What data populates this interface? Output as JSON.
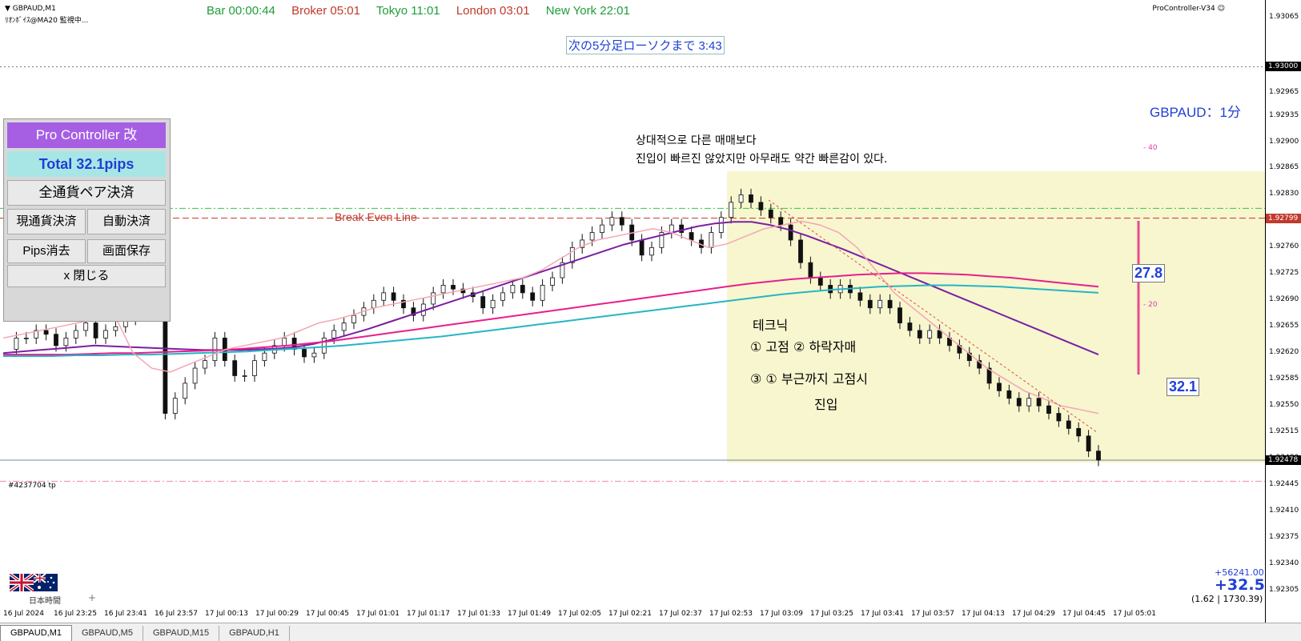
{
  "header": {
    "symbol": "▼ GBPAUD,M1",
    "subtitle": "ﾘｵﾝﾎﾞｲｽ@MA20 監視中...",
    "indicator": "ProController-V34"
  },
  "sessions": {
    "bar": "Bar 00:00:44",
    "broker": "Broker 05:01",
    "tokyo": "Tokyo 11:01",
    "london": "London 03:01",
    "newyork": "New York 22:01",
    "colors": {
      "bar": "#1f9d3a",
      "broker": "#c0392b",
      "tokyo": "#1f9d3a",
      "london": "#c0392b",
      "newyork": "#1f9d3a"
    }
  },
  "countdown": "次の5分足ローソクまで 3:43",
  "panel": {
    "title": "Pro Controller 改",
    "total": "Total   32.1pips",
    "close_all_pairs": "全通貨ペア決済",
    "close_current": "現通貨決済",
    "auto_close": "自動決済",
    "clear_pips": "Pips消去",
    "save_screen": "画面保存",
    "close": "x 閉じる"
  },
  "annotations": {
    "note_line1": "상대적으로 다른 매매보다",
    "note_line2": "진입이 빠르진 않았지만 아무래도 약간 빠른감이 있다.",
    "hand_line1": "테크닉",
    "hand_line2": "① 고점  ② 하락자매",
    "hand_line3": "③  ① 부근까지 고점시",
    "hand_line4": "진입",
    "break_even": "Break Even Line",
    "symbol_timeframe": "GBPAUD：1分",
    "pips_top": "27.8",
    "pips_bottom": "32.1",
    "level_40": "- 40",
    "level_20": "- 20",
    "tp_label": "#4237704 tp"
  },
  "price_axis": {
    "labels": [
      "1.93065",
      "1.93000",
      "1.92965",
      "1.92935",
      "1.92900",
      "1.92865",
      "1.92830",
      "1.92795",
      "1.92760",
      "1.92725",
      "1.92690",
      "1.92655",
      "1.92620",
      "1.92585",
      "1.92550",
      "1.92515",
      "1.92480",
      "1.92445",
      "1.92410",
      "1.92375",
      "1.92340",
      "1.92305"
    ],
    "tag_top": "1.93000",
    "tag_be": "1.92799",
    "tag_bid": "1.92478"
  },
  "time_axis": [
    "16 Jul 2024",
    "16 Jul 23:25",
    "16 Jul 23:41",
    "16 Jul 23:57",
    "17 Jul 00:13",
    "17 Jul 00:29",
    "17 Jul 00:45",
    "17 Jul 01:01",
    "17 Jul 01:17",
    "17 Jul 01:33",
    "17 Jul 01:49",
    "17 Jul 02:05",
    "17 Jul 02:21",
    "17 Jul 02:37",
    "17 Jul 02:53",
    "17 Jul 03:09",
    "17 Jul 03:25",
    "17 Jul 03:41",
    "17 Jul 03:57",
    "17 Jul 04:13",
    "17 Jul 04:29",
    "17 Jul 04:45",
    "17 Jul 05:01"
  ],
  "account": {
    "line1": "+56241.00",
    "line2": "+32.5",
    "line3": "(1.62 | 1730.39)",
    "timezone": "日本時間",
    "plus": "+"
  },
  "tabs": [
    "GBPAUD,M1",
    "GBPAUD,M5",
    "GBPAUD,M15",
    "GBPAUD,H1"
  ],
  "chart_data": {
    "type": "line",
    "symbol": "GBPAUD",
    "timeframe": "M1",
    "xlabel": "",
    "ylabel": "",
    "ylim": [
      1.9229,
      1.9308
    ],
    "price_series": [
      1.92625,
      1.9264,
      1.9264,
      1.9265,
      1.92645,
      1.9263,
      1.9264,
      1.9265,
      1.9266,
      1.9264,
      1.9265,
      1.92655,
      1.92665,
      1.9267,
      1.9268,
      1.9267,
      1.9254,
      1.9256,
      1.9258,
      1.926,
      1.9261,
      1.9264,
      1.9261,
      1.9259,
      1.9259,
      1.9261,
      1.9262,
      1.9263,
      1.9264,
      1.92625,
      1.92615,
      1.9262,
      1.9264,
      1.9265,
      1.9266,
      1.9267,
      1.9268,
      1.9269,
      1.927,
      1.9269,
      1.9268,
      1.9267,
      1.92685,
      1.927,
      1.9271,
      1.92705,
      1.927,
      1.92695,
      1.9268,
      1.9269,
      1.927,
      1.9271,
      1.927,
      1.9269,
      1.9271,
      1.9272,
      1.9274,
      1.9276,
      1.9277,
      1.9278,
      1.9279,
      1.928,
      1.9279,
      1.9277,
      1.9275,
      1.9276,
      1.9278,
      1.9279,
      1.9278,
      1.9277,
      1.9276,
      1.9278,
      1.928,
      1.9282,
      1.9283,
      1.9282,
      1.9281,
      1.928,
      1.9279,
      1.9277,
      1.9274,
      1.9272,
      1.9271,
      1.927,
      1.9271,
      1.927,
      1.9269,
      1.9268,
      1.9269,
      1.9268,
      1.9266,
      1.9265,
      1.9264,
      1.9265,
      1.9264,
      1.9263,
      1.9262,
      1.9261,
      1.926,
      1.9258,
      1.9257,
      1.9256,
      1.9255,
      1.9256,
      1.9255,
      1.9254,
      1.9253,
      1.9252,
      1.9251,
      1.9249,
      1.92478
    ],
    "series": [
      {
        "name": "",
        "color": "#7b1fa2",
        "values": [
          1.9262,
          1.92622,
          1.92624,
          1.92626,
          1.92628,
          1.9263,
          1.92629,
          1.92628,
          1.92627,
          1.92626,
          1.92625,
          1.92624,
          1.92624,
          1.92624,
          1.92625,
          1.92626,
          1.92628,
          1.92632,
          1.92638,
          1.92645,
          1.92652,
          1.9266,
          1.92668,
          1.92676,
          1.92684,
          1.92692,
          1.927,
          1.92708,
          1.92716,
          1.92724,
          1.92732,
          1.9274,
          1.92748,
          1.92756,
          1.92764,
          1.9277,
          1.92776,
          1.92782,
          1.92788,
          1.92792,
          1.92794,
          1.92794,
          1.9279,
          1.92784,
          1.92776,
          1.92767,
          1.92758,
          1.92748,
          1.92738,
          1.92728,
          1.92718,
          1.92708,
          1.92698,
          1.92688,
          1.92678,
          1.92668,
          1.92658,
          1.92648,
          1.92638,
          1.92628,
          1.92618
        ]
      },
      {
        "name": "",
        "color": "#e91e8c",
        "values": [
          1.92618,
          1.92618,
          1.92618,
          1.92618,
          1.92619,
          1.9262,
          1.9262,
          1.92621,
          1.92622,
          1.92623,
          1.92624,
          1.92626,
          1.92628,
          1.9263,
          1.92633,
          1.92636,
          1.9264,
          1.92644,
          1.92648,
          1.92652,
          1.92656,
          1.9266,
          1.92664,
          1.92668,
          1.92672,
          1.92676,
          1.9268,
          1.92684,
          1.92688,
          1.92692,
          1.92696,
          1.927,
          1.92704,
          1.92708,
          1.92712,
          1.92715,
          1.92718,
          1.9272,
          1.92722,
          1.92724,
          1.92725,
          1.92726,
          1.92726,
          1.92725,
          1.92724,
          1.92722,
          1.9272,
          1.92717,
          1.92714,
          1.92711,
          1.92708
        ]
      },
      {
        "name": "",
        "color": "#26b5c5",
        "values": [
          1.92616,
          1.92616,
          1.92616,
          1.92617,
          1.92617,
          1.92618,
          1.92618,
          1.92619,
          1.9262,
          1.92621,
          1.92622,
          1.92624,
          1.92626,
          1.92628,
          1.9263,
          1.92633,
          1.92636,
          1.92639,
          1.92642,
          1.92646,
          1.9265,
          1.92654,
          1.92658,
          1.92662,
          1.92666,
          1.9267,
          1.92674,
          1.92678,
          1.92682,
          1.92686,
          1.9269,
          1.92694,
          1.92698,
          1.92701,
          1.92704,
          1.92706,
          1.92708,
          1.92709,
          1.9271,
          1.9271,
          1.92709,
          1.92708,
          1.92706,
          1.92704,
          1.92702,
          1.927
        ]
      },
      {
        "name": "",
        "color": "#f4a6b3",
        "values": [
          1.9264,
          1.92645,
          1.9265,
          1.92655,
          1.9266,
          1.92665,
          1.9267,
          1.9262,
          1.926,
          1.92595,
          1.92605,
          1.92615,
          1.92625,
          1.9263,
          1.92635,
          1.9264,
          1.9265,
          1.9266,
          1.92665,
          1.92672,
          1.9268,
          1.92685,
          1.9269,
          1.92695,
          1.927,
          1.92705,
          1.9271,
          1.92715,
          1.9272,
          1.9273,
          1.92745,
          1.9276,
          1.9277,
          1.92775,
          1.9278,
          1.92785,
          1.9278,
          1.9277,
          1.9276,
          1.92765,
          1.92775,
          1.92785,
          1.9279,
          1.92795,
          1.9279,
          1.9278,
          1.9276,
          1.9273,
          1.927,
          1.9268,
          1.9266,
          1.9264,
          1.9262,
          1.926,
          1.92585,
          1.9257,
          1.9256,
          1.9255,
          1.92545,
          1.9254
        ]
      }
    ],
    "horizontal_lines": [
      {
        "label": "1.93000",
        "value": 1.93,
        "style": "dotted",
        "color": "#777777"
      },
      {
        "label": "Break Even Line",
        "value": 1.92799,
        "style": "dashed",
        "color": "#c0392b"
      },
      {
        "label": "",
        "value": 1.92812,
        "style": "dashdot",
        "color": "#2ecc40"
      },
      {
        "label": "1.92478",
        "value": 1.92478,
        "style": "solid",
        "color": "#778899"
      },
      {
        "label": "#4237704 tp",
        "value": 1.9245,
        "style": "dashdot",
        "color": "#f08aa8"
      }
    ],
    "grid": false
  }
}
